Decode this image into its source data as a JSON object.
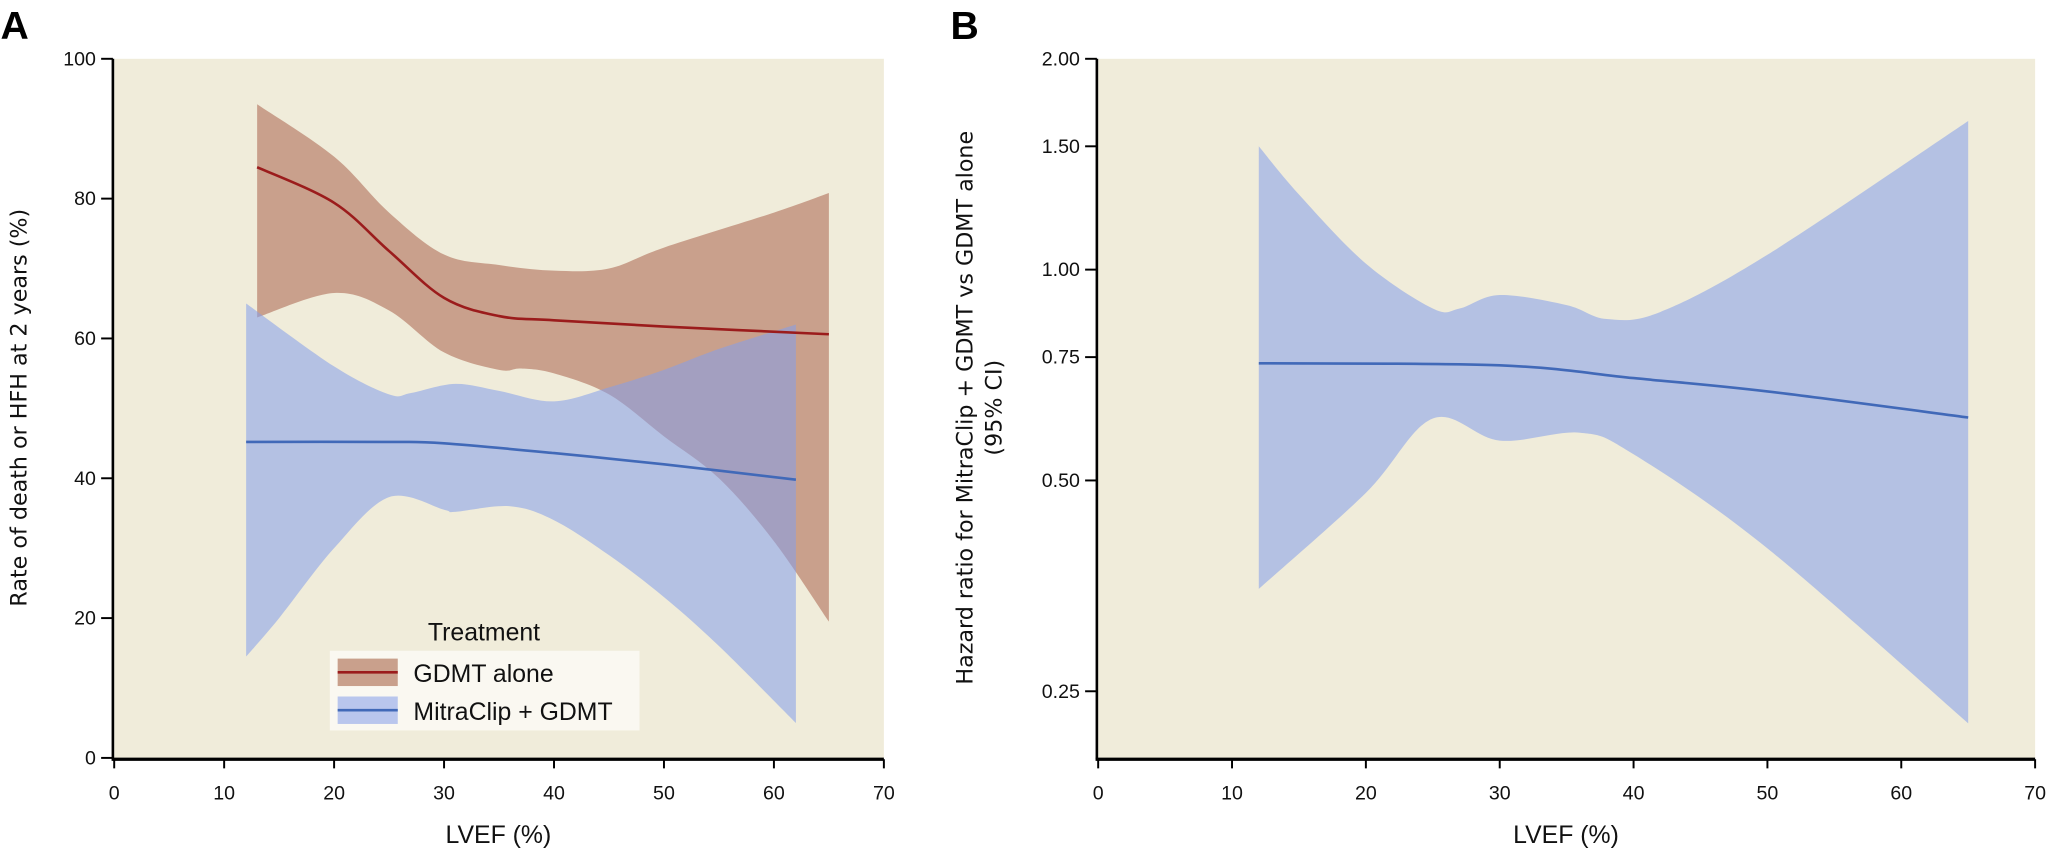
{
  "colors": {
    "plot_background": "#f0ecda",
    "gdmt_band": "#c9a08c",
    "gdmt_line": "#9b1c1c",
    "mitraclip_band": "rgba(134,158,234,0.56)",
    "mitraclip_line": "#4169b8"
  },
  "chart_data": [
    {
      "panel_label": "A",
      "type": "line",
      "xlabel": "LVEF (%)",
      "ylabel": "Rate of death or HFH at 2 years (%)",
      "xlim": [
        0,
        70
      ],
      "ylim": [
        0,
        100
      ],
      "xticks": [
        "0",
        "10",
        "20",
        "30",
        "40",
        "50",
        "60",
        "70"
      ],
      "yticks": [
        "0",
        "20",
        "40",
        "60",
        "80",
        "100"
      ],
      "grid": false,
      "legend": {
        "title": "Treatment",
        "placement": "bottom-center",
        "entries": [
          "GDMT alone",
          "MitraClip + GDMT"
        ]
      },
      "series": [
        {
          "name": "GDMT alone",
          "line": [
            [
              13,
              84.5
            ],
            [
              20,
              79.4
            ],
            [
              25,
              72.5
            ],
            [
              30,
              65.8
            ],
            [
              35,
              63.2
            ],
            [
              40,
              62.6
            ],
            [
              50,
              61.7
            ],
            [
              65,
              60.6
            ]
          ],
          "upper": [
            [
              13,
              93.5
            ],
            [
              20,
              86
            ],
            [
              25,
              78
            ],
            [
              30,
              72
            ],
            [
              35,
              70.5
            ],
            [
              40,
              69.7
            ],
            [
              45,
              70
            ],
            [
              50,
              73
            ],
            [
              60,
              78
            ],
            [
              65,
              80.8
            ]
          ],
          "lower": [
            [
              13,
              63
            ],
            [
              20,
              66.5
            ],
            [
              25,
              64
            ],
            [
              30,
              58
            ],
            [
              35,
              55.5
            ],
            [
              37,
              55.7
            ],
            [
              40,
              55
            ],
            [
              45,
              52
            ],
            [
              50,
              46
            ],
            [
              55,
              40
            ],
            [
              60,
              31
            ],
            [
              65,
              19.5
            ]
          ]
        },
        {
          "name": "MitraClip + GDMT",
          "line": [
            [
              12,
              45.2
            ],
            [
              25,
              45.2
            ],
            [
              30,
              45
            ],
            [
              40,
              43.6
            ],
            [
              50,
              42
            ],
            [
              62,
              39.8
            ]
          ],
          "upper": [
            [
              12,
              65
            ],
            [
              20,
              56
            ],
            [
              25,
              52
            ],
            [
              27,
              52.2
            ],
            [
              31,
              53.5
            ],
            [
              35,
              52.5
            ],
            [
              40,
              51
            ],
            [
              45,
              53
            ],
            [
              50,
              55.5
            ],
            [
              55,
              58.5
            ],
            [
              62,
              62
            ]
          ],
          "lower": [
            [
              12,
              14.5
            ],
            [
              15,
              20
            ],
            [
              20,
              30
            ],
            [
              25,
              37.3
            ],
            [
              30,
              35.5
            ],
            [
              31,
              35.2
            ],
            [
              36,
              36
            ],
            [
              40,
              34
            ],
            [
              45,
              29
            ],
            [
              50,
              23
            ],
            [
              55,
              16
            ],
            [
              62,
              5
            ]
          ]
        }
      ]
    },
    {
      "panel_label": "B",
      "type": "line",
      "xlabel": "LVEF (%)",
      "ylabel": [
        "Hazard ratio for MitraClip + GDMT vs GDMT alone",
        "(95% CI)"
      ],
      "xlim": [
        0,
        70
      ],
      "ylim": [
        0.197,
        2.0
      ],
      "yscale": "log",
      "xticks": [
        "0",
        "10",
        "20",
        "30",
        "40",
        "50",
        "60",
        "70"
      ],
      "yticks": [
        "0.25",
        "0.50",
        "0.75",
        "1.00",
        "1.50",
        "2.00"
      ],
      "grid": false,
      "series": [
        {
          "line": [
            [
              12,
              0.735
            ],
            [
              30,
              0.73
            ],
            [
              40,
              0.7
            ],
            [
              50,
              0.67
            ],
            [
              65,
              0.615
            ]
          ],
          "upper": [
            [
              12,
              1.5
            ],
            [
              15,
              1.28
            ],
            [
              20,
              1.02
            ],
            [
              25,
              0.88
            ],
            [
              27,
              0.88
            ],
            [
              30,
              0.92
            ],
            [
              35,
              0.89
            ],
            [
              38,
              0.85
            ],
            [
              42,
              0.87
            ],
            [
              50,
              1.05
            ],
            [
              65,
              1.63
            ]
          ],
          "lower": [
            [
              12,
              0.35
            ],
            [
              20,
              0.48
            ],
            [
              25,
              0.613
            ],
            [
              30,
              0.57
            ],
            [
              36,
              0.585
            ],
            [
              40,
              0.545
            ],
            [
              50,
              0.4
            ],
            [
              65,
              0.225
            ]
          ]
        }
      ]
    }
  ]
}
